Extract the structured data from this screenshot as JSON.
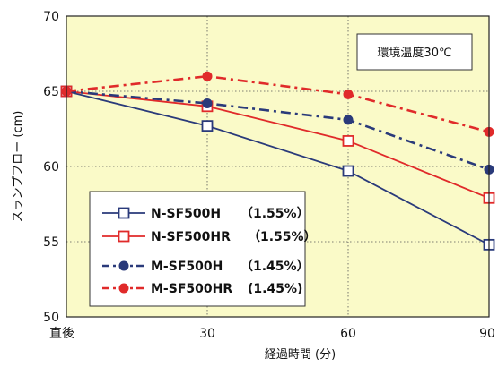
{
  "chart_data": {
    "type": "line",
    "title": "",
    "xlabel": "経過時間 (分)",
    "ylabel": "スランプフロー (cm)",
    "categories": [
      "直後",
      "30",
      "60",
      "90"
    ],
    "ylim": [
      50,
      70
    ],
    "yticks": [
      "50",
      "55",
      "60",
      "65",
      "70"
    ],
    "grid": true,
    "background_color": "#fafac8",
    "annotation": "環境温度30℃",
    "legend_position": "lower-left",
    "series": [
      {
        "name": "N-SF500H",
        "detail": "（1.55%）",
        "values": [
          65.0,
          62.7,
          59.7,
          54.8
        ],
        "color": "#2a3a7a",
        "marker": "square-open",
        "line_style": "solid"
      },
      {
        "name": "N-SF500HR",
        "detail": "（1.55%）",
        "values": [
          65.0,
          64.0,
          61.7,
          57.9
        ],
        "color": "#e02a2a",
        "marker": "square-open",
        "line_style": "solid"
      },
      {
        "name": "M-SF500H",
        "detail": "（1.45%）",
        "values": [
          65.0,
          64.2,
          63.1,
          59.8
        ],
        "color": "#2a3a7a",
        "marker": "circle-filled",
        "line_style": "dash-dot"
      },
      {
        "name": "M-SF500HR",
        "detail": "(1.45%)",
        "values": [
          65.0,
          66.0,
          64.8,
          62.3
        ],
        "color": "#e02a2a",
        "marker": "circle-filled",
        "line_style": "dash-dot"
      }
    ]
  }
}
